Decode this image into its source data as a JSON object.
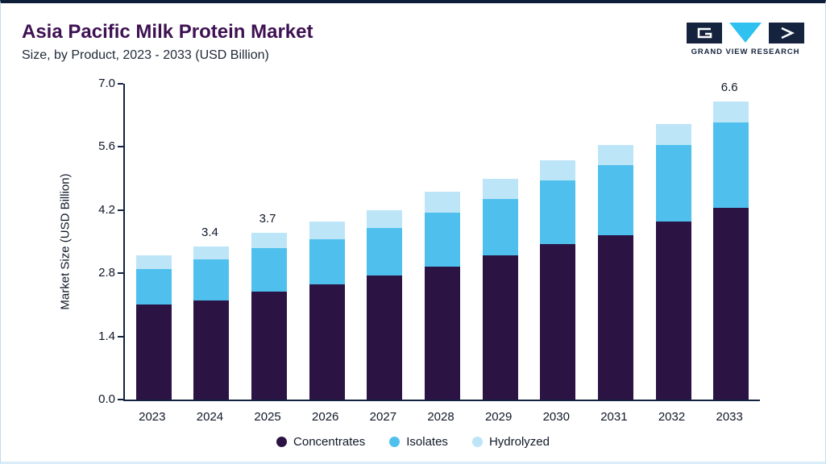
{
  "header": {
    "title": "Asia Pacific Milk Protein Market",
    "subtitle": "Size, by Product, 2023 - 2033 (USD Billion)",
    "brand": "GRAND VIEW RESEARCH"
  },
  "chart_data": {
    "type": "bar",
    "stacked": true,
    "title": "Asia Pacific Milk Protein Market Size, by Product, 2023 - 2033 (USD Billion)",
    "xlabel": "",
    "ylabel": "Market Size (USD Billion)",
    "ylim": [
      0,
      7.0
    ],
    "yticks": [
      0.0,
      1.4,
      2.8,
      4.2,
      5.6,
      7.0
    ],
    "grid": false,
    "legend_position": "bottom",
    "categories": [
      "2023",
      "2024",
      "2025",
      "2026",
      "2027",
      "2028",
      "2029",
      "2030",
      "2031",
      "2032",
      "2033"
    ],
    "series": [
      {
        "name": "Concentrates",
        "color": "#2b1444",
        "values": [
          2.1,
          2.2,
          2.4,
          2.55,
          2.75,
          2.95,
          3.2,
          3.45,
          3.65,
          3.95,
          4.25
        ]
      },
      {
        "name": "Isolates",
        "color": "#4fc0ee",
        "values": [
          0.8,
          0.9,
          0.95,
          1.0,
          1.05,
          1.2,
          1.25,
          1.4,
          1.55,
          1.7,
          1.9
        ]
      },
      {
        "name": "Hydrolyzed",
        "color": "#bde5f8",
        "values": [
          0.3,
          0.3,
          0.35,
          0.4,
          0.4,
          0.45,
          0.45,
          0.45,
          0.45,
          0.45,
          0.45
        ]
      }
    ],
    "totals": [
      3.2,
      3.4,
      3.7,
      3.95,
      4.2,
      4.6,
      4.9,
      5.3,
      5.65,
      6.1,
      6.6
    ],
    "bar_labels": {
      "2024": "3.4",
      "2025": "3.7",
      "2033": "6.6"
    }
  },
  "colors": {
    "accent_top_bar": "#0e1e38",
    "card_border": "#bfdcee",
    "title": "#3e1152",
    "axis": "#13233f",
    "text": "#101828",
    "brand_navy": "#16233e",
    "brand_cyan": "#2fc1f0"
  }
}
